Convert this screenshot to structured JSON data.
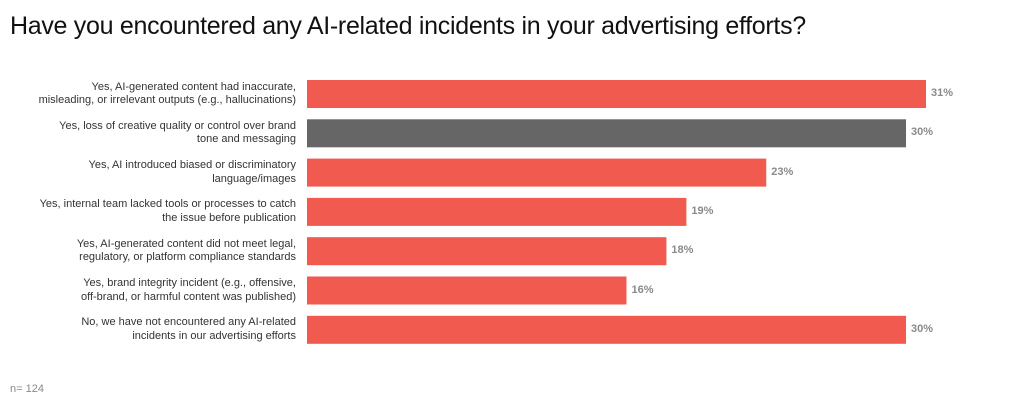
{
  "chart_data": {
    "type": "bar",
    "orientation": "horizontal",
    "title": "Have you encountered any AI-related incidents in your advertising efforts?",
    "categories": [
      [
        "Yes, AI-generated content had inaccurate,",
        "misleading, or irrelevant outputs (e.g., hallucinations)"
      ],
      [
        "Yes, loss of creative quality or control over brand",
        "tone and messaging"
      ],
      [
        "Yes, AI introduced biased or discriminatory",
        "language/images"
      ],
      [
        "Yes, internal team lacked tools or processes to catch",
        "the issue before publication"
      ],
      [
        "Yes, AI-generated content did not meet legal,",
        "regulatory, or platform compliance standards"
      ],
      [
        "Yes, brand integrity incident (e.g., offensive,",
        "off-brand, or harmful content was published)"
      ],
      [
        "No, we have not encountered any AI-related",
        "incidents in our advertising efforts"
      ]
    ],
    "values": [
      31,
      30,
      23,
      19,
      18,
      16,
      30
    ],
    "value_labels": [
      "31%",
      "30%",
      "23%",
      "19%",
      "18%",
      "16%",
      "30%"
    ],
    "colors": [
      "#f05a4f",
      "#666666",
      "#f05a4f",
      "#f05a4f",
      "#f05a4f",
      "#f05a4f",
      "#f05a4f"
    ],
    "xlim": [
      0,
      31
    ],
    "grid": false,
    "legend": "none"
  },
  "note": "n= 124"
}
